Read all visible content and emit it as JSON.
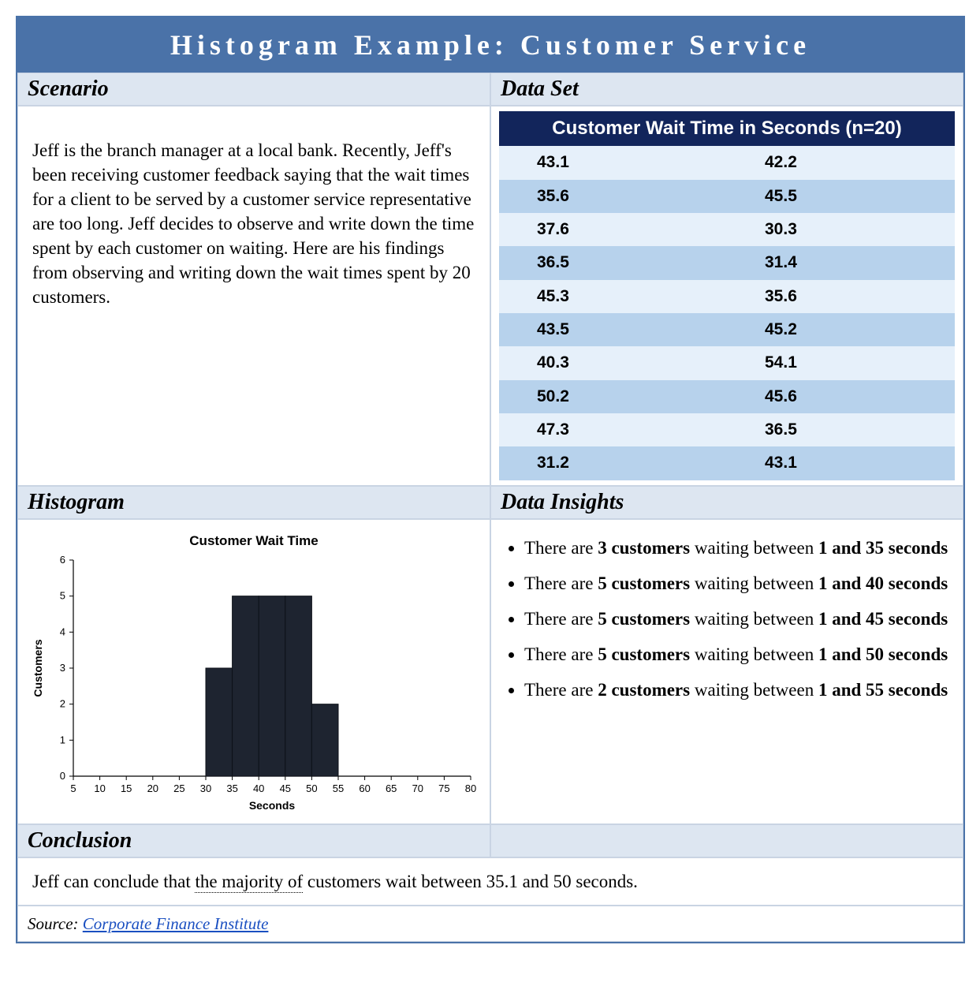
{
  "title": "Histogram Example: Customer Service",
  "headers": {
    "scenario": "Scenario",
    "dataset": "Data Set",
    "histogram": "Histogram",
    "insights": "Data Insights",
    "conclusion": "Conclusion"
  },
  "scenario_text": "Jeff is the branch manager at a local bank. Recently, Jeff's been receiving customer feedback saying that the wait times for a client to be served by a customer service representative are too long. Jeff decides to observe and write down the time spent by each customer on waiting. Here are his findings from observing and writing down the wait times spent by 20 customers.",
  "dataset": {
    "title": "Customer Wait Time in Seconds (n=20)",
    "title_bg": "#12255b",
    "title_color": "#ffffff",
    "row_colors": {
      "light": "#e6f0fa",
      "dark": "#b7d2ec"
    },
    "font_family": "Arial",
    "font_size_pt": 16,
    "rows": [
      [
        "43.1",
        "42.2"
      ],
      [
        "35.6",
        "45.5"
      ],
      [
        "37.6",
        "30.3"
      ],
      [
        "36.5",
        "31.4"
      ],
      [
        "45.3",
        "35.6"
      ],
      [
        "43.5",
        "45.2"
      ],
      [
        "40.3",
        "54.1"
      ],
      [
        "50.2",
        "45.6"
      ],
      [
        "47.3",
        "36.5"
      ],
      [
        "31.2",
        "43.1"
      ]
    ]
  },
  "histogram": {
    "type": "histogram",
    "title": "Customer Wait Time",
    "title_fontsize": 13,
    "xlabel": "Seconds",
    "ylabel": "Customers",
    "label_fontsize": 11,
    "bar_color": "#1e2430",
    "background_color": "#ffffff",
    "axis_color": "#000000",
    "tick_fontsize": 10,
    "xlim": [
      5,
      80
    ],
    "xtick_step": 5,
    "xticks": [
      5,
      10,
      15,
      20,
      25,
      30,
      35,
      40,
      45,
      50,
      55,
      60,
      65,
      70,
      75,
      80
    ],
    "ylim": [
      0,
      6
    ],
    "ytick_step": 1,
    "yticks": [
      0,
      1,
      2,
      3,
      4,
      5,
      6
    ],
    "bin_width": 5,
    "bins": [
      {
        "x_start": 30,
        "x_end": 35,
        "count": 3
      },
      {
        "x_start": 35,
        "x_end": 40,
        "count": 5
      },
      {
        "x_start": 40,
        "x_end": 45,
        "count": 5
      },
      {
        "x_start": 45,
        "x_end": 50,
        "count": 5
      },
      {
        "x_start": 50,
        "x_end": 55,
        "count": 2
      }
    ]
  },
  "insights": [
    {
      "pre": "There are ",
      "b1": "3 customers",
      "mid": " waiting between ",
      "b2": "1 and 35 seconds"
    },
    {
      "pre": "There are ",
      "b1": "5 customers",
      "mid": " waiting between ",
      "b2": "1 and 40 seconds"
    },
    {
      "pre": "There are ",
      "b1": "5 customers",
      "mid": " waiting between ",
      "b2": "1 and 45 seconds"
    },
    {
      "pre": "There are ",
      "b1": "5 customers",
      "mid": " waiting between ",
      "b2": "1 and 50 seconds"
    },
    {
      "pre": "There are ",
      "b1": "2 customers",
      "mid": " waiting between ",
      "b2": "1 and 55 seconds"
    }
  ],
  "conclusion": {
    "pre": "Jeff can conclude that ",
    "dotted": "the majority of",
    "post": " customers wait between 35.1 and 50 seconds."
  },
  "source": {
    "label": "Source: ",
    "link_text": "Corporate Finance Institute"
  },
  "colors": {
    "title_bar_bg": "#4a72a8",
    "title_bar_text": "#ffffff",
    "section_header_bg": "#dde6f1",
    "border": "#c9d4e3",
    "link": "#1a4fc1"
  }
}
